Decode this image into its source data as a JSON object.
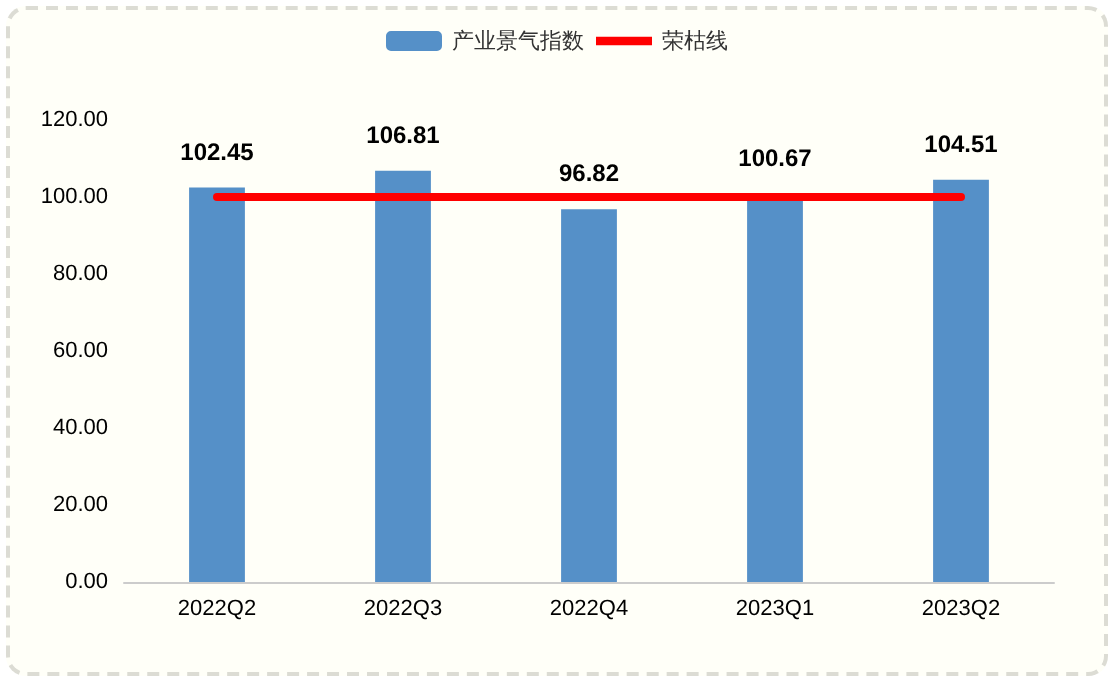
{
  "chart_data": {
    "type": "bar",
    "categories": [
      "2022Q2",
      "2022Q3",
      "2022Q4",
      "2023Q1",
      "2023Q2"
    ],
    "series": [
      {
        "name": "产业景气指数",
        "color": "#5590c8",
        "values": [
          102.45,
          106.81,
          96.82,
          100.67,
          104.51
        ],
        "value_labels": [
          "102.45",
          "106.81",
          "96.82",
          "100.67",
          "104.51"
        ]
      },
      {
        "name": "荣枯线",
        "type": "line",
        "color": "#ff0000",
        "values": [
          100,
          100,
          100,
          100,
          100
        ]
      }
    ],
    "ylim": [
      0,
      120
    ],
    "yticks": [
      {
        "value": 0,
        "label": "0.00"
      },
      {
        "value": 20,
        "label": "20.00"
      },
      {
        "value": 40,
        "label": "40.00"
      },
      {
        "value": 60,
        "label": "60.00"
      },
      {
        "value": 80,
        "label": "80.00"
      },
      {
        "value": 100,
        "label": "100.00"
      },
      {
        "value": 120,
        "label": "120.00"
      }
    ],
    "legend": "top",
    "grid": false,
    "marker": "none",
    "line_style": "solid"
  }
}
